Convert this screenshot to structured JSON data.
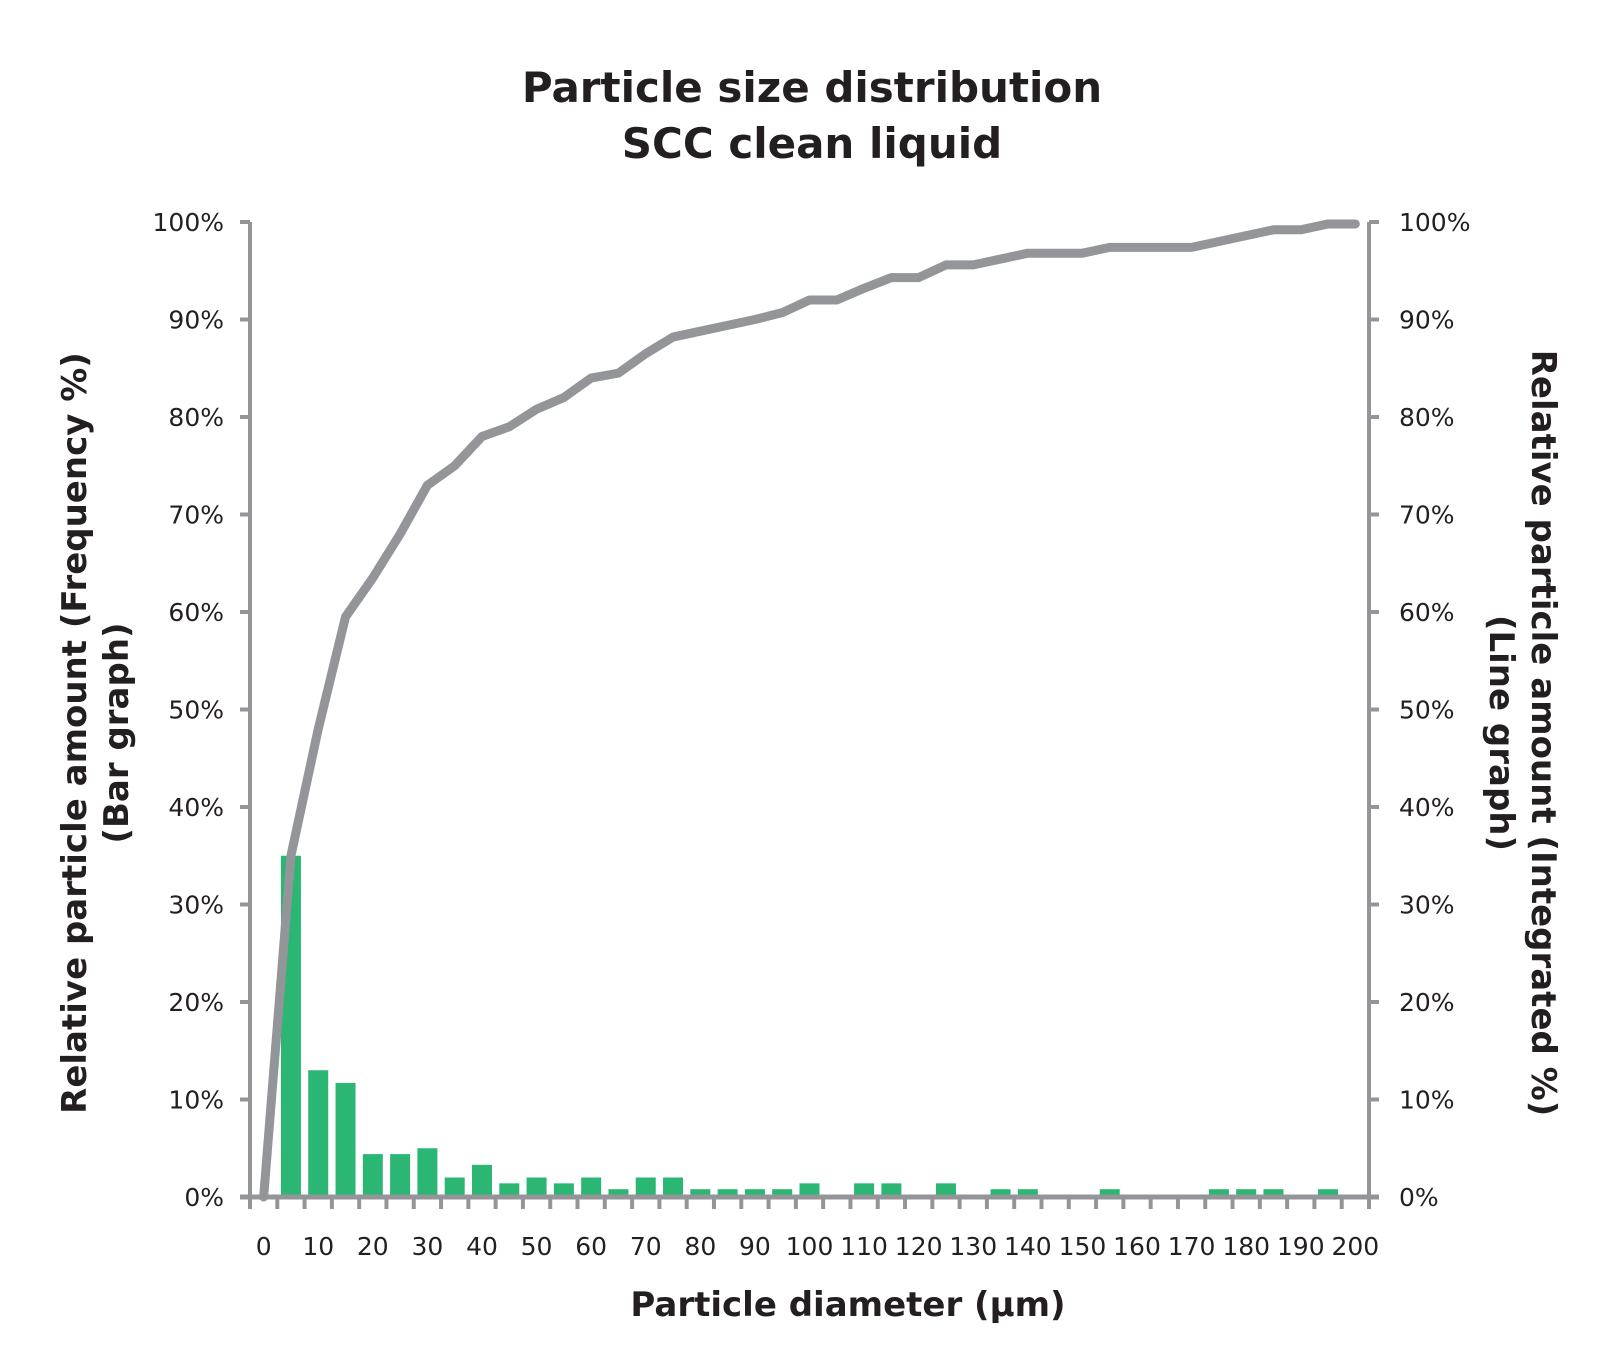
{
  "chart_data": {
    "type": "bar+line",
    "title": [
      "Particle size distribution",
      "SCC clean liquid"
    ],
    "xlabel": "Particle diameter (µm)",
    "ylabel_left": [
      "Relative particle amount (Frequency %)",
      "(Bar graph)"
    ],
    "ylabel_right": [
      "Relative particle amount (Integrated %)",
      "(Line graph)"
    ],
    "categories": [
      0,
      5,
      10,
      15,
      20,
      25,
      30,
      35,
      40,
      45,
      50,
      55,
      60,
      65,
      70,
      75,
      80,
      85,
      90,
      95,
      100,
      105,
      110,
      115,
      120,
      125,
      130,
      135,
      140,
      145,
      150,
      155,
      160,
      165,
      170,
      175,
      180,
      185,
      190,
      195,
      200
    ],
    "x_tick_labels": [
      "0",
      "10",
      "20",
      "30",
      "40",
      "50",
      "60",
      "70",
      "80",
      "90",
      "100",
      "110",
      "120",
      "130",
      "140",
      "150",
      "160",
      "170",
      "180",
      "190",
      "200"
    ],
    "y_tick_labels": [
      "0%",
      "10%",
      "20%",
      "30%",
      "40%",
      "50%",
      "60%",
      "70%",
      "80%",
      "90%",
      "100%"
    ],
    "ylim": [
      0,
      100
    ],
    "grid": false,
    "series": [
      {
        "type": "bar",
        "axis": "left",
        "color": "#2bb673",
        "values": [
          0,
          35,
          13,
          11.7,
          4.4,
          4.4,
          5,
          2,
          3.3,
          1.4,
          2,
          1.4,
          2,
          0.8,
          2,
          2,
          0.8,
          0.8,
          0.8,
          0.8,
          1.4,
          0,
          1.4,
          1.4,
          0,
          1.4,
          0,
          0.8,
          0.8,
          0,
          0,
          0.8,
          0,
          0,
          0,
          0.8,
          0.8,
          0.8,
          0,
          0.8,
          0
        ]
      },
      {
        "type": "line",
        "axis": "right",
        "color": "#939598",
        "values": [
          0,
          35,
          48,
          59.5,
          63.5,
          68,
          73,
          75,
          78,
          79,
          80.8,
          82,
          84,
          84.5,
          86.5,
          88.2,
          88.8,
          89.4,
          90,
          90.7,
          92,
          92,
          93.2,
          94.3,
          94.3,
          95.6,
          95.6,
          96.2,
          96.8,
          96.8,
          96.8,
          97.4,
          97.4,
          97.4,
          97.4,
          98,
          98.6,
          99.2,
          99.2,
          99.8,
          99.8
        ]
      }
    ],
    "axis_color": "#939598"
  }
}
